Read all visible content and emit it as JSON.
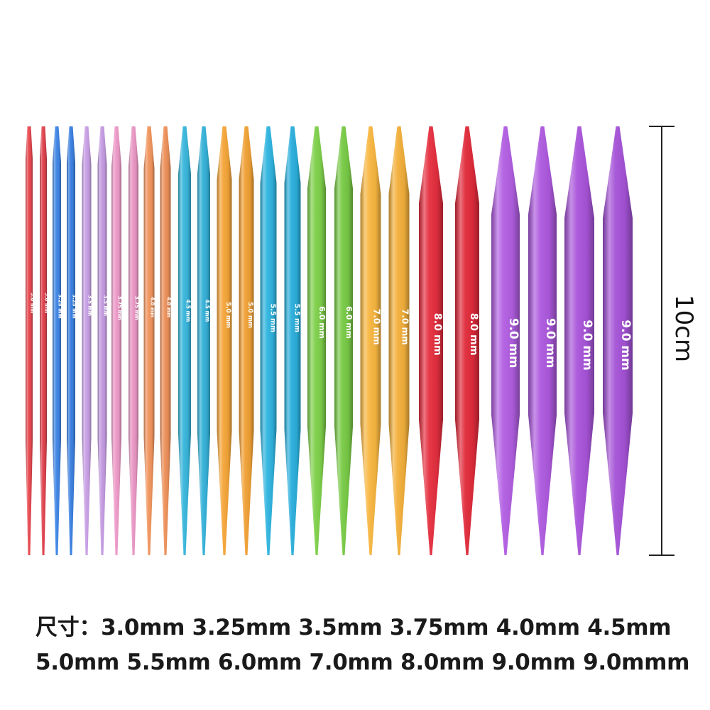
{
  "scale": {
    "label": "10cm"
  },
  "caption": {
    "line1": "尺寸：3.0mm 3.25mm 3.5mm 3.75mm 4.0mm 4.5mm",
    "line2": "5.0mm 5.5mm 6.0mm 7.0mm 8.0mm 9.0mm 9.0mmm"
  },
  "needles": [
    {
      "label": "3.0 mm",
      "color": "#e8484f"
    },
    {
      "label": "3.0 mm",
      "color": "#e0424c"
    },
    {
      "label": "3.25 mm",
      "color": "#3f86e6"
    },
    {
      "label": "3.25 mm",
      "color": "#3a80e0"
    },
    {
      "label": "3.5 mm",
      "color": "#c9a0e6"
    },
    {
      "label": "3.5 mm",
      "color": "#c49be2"
    },
    {
      "label": "3.75 mm",
      "color": "#ee9ac8"
    },
    {
      "label": "3.75 mm",
      "color": "#e996c4"
    },
    {
      "label": "4.0 mm",
      "color": "#f2955e"
    },
    {
      "label": "4.0 mm",
      "color": "#ed9059"
    },
    {
      "label": "4.5 mm",
      "color": "#38b6dc"
    },
    {
      "label": "4.5 mm",
      "color": "#34b1d8"
    },
    {
      "label": "5.0 mm",
      "color": "#f5a538"
    },
    {
      "label": "5.0 mm",
      "color": "#f0a034"
    },
    {
      "label": "5.5 mm",
      "color": "#2fb4e0"
    },
    {
      "label": "5.5 mm",
      "color": "#2aafdc"
    },
    {
      "label": "6.0 mm",
      "color": "#7ed04a"
    },
    {
      "label": "6.0 mm",
      "color": "#78ca45"
    },
    {
      "label": "7.0 mm",
      "color": "#f8b640"
    },
    {
      "label": "7.0 mm",
      "color": "#f3b03b"
    },
    {
      "label": "8.0 mm",
      "color": "#e52e3e"
    },
    {
      "label": "8.0 mm",
      "color": "#e02a3a"
    },
    {
      "label": "9.0 mm",
      "color": "#b25ee2"
    },
    {
      "label": "9.0 mm",
      "color": "#ad59de"
    },
    {
      "label": "9.0 mm",
      "color": "#a955da"
    },
    {
      "label": "9.0 mm",
      "color": "#a452d6"
    }
  ]
}
